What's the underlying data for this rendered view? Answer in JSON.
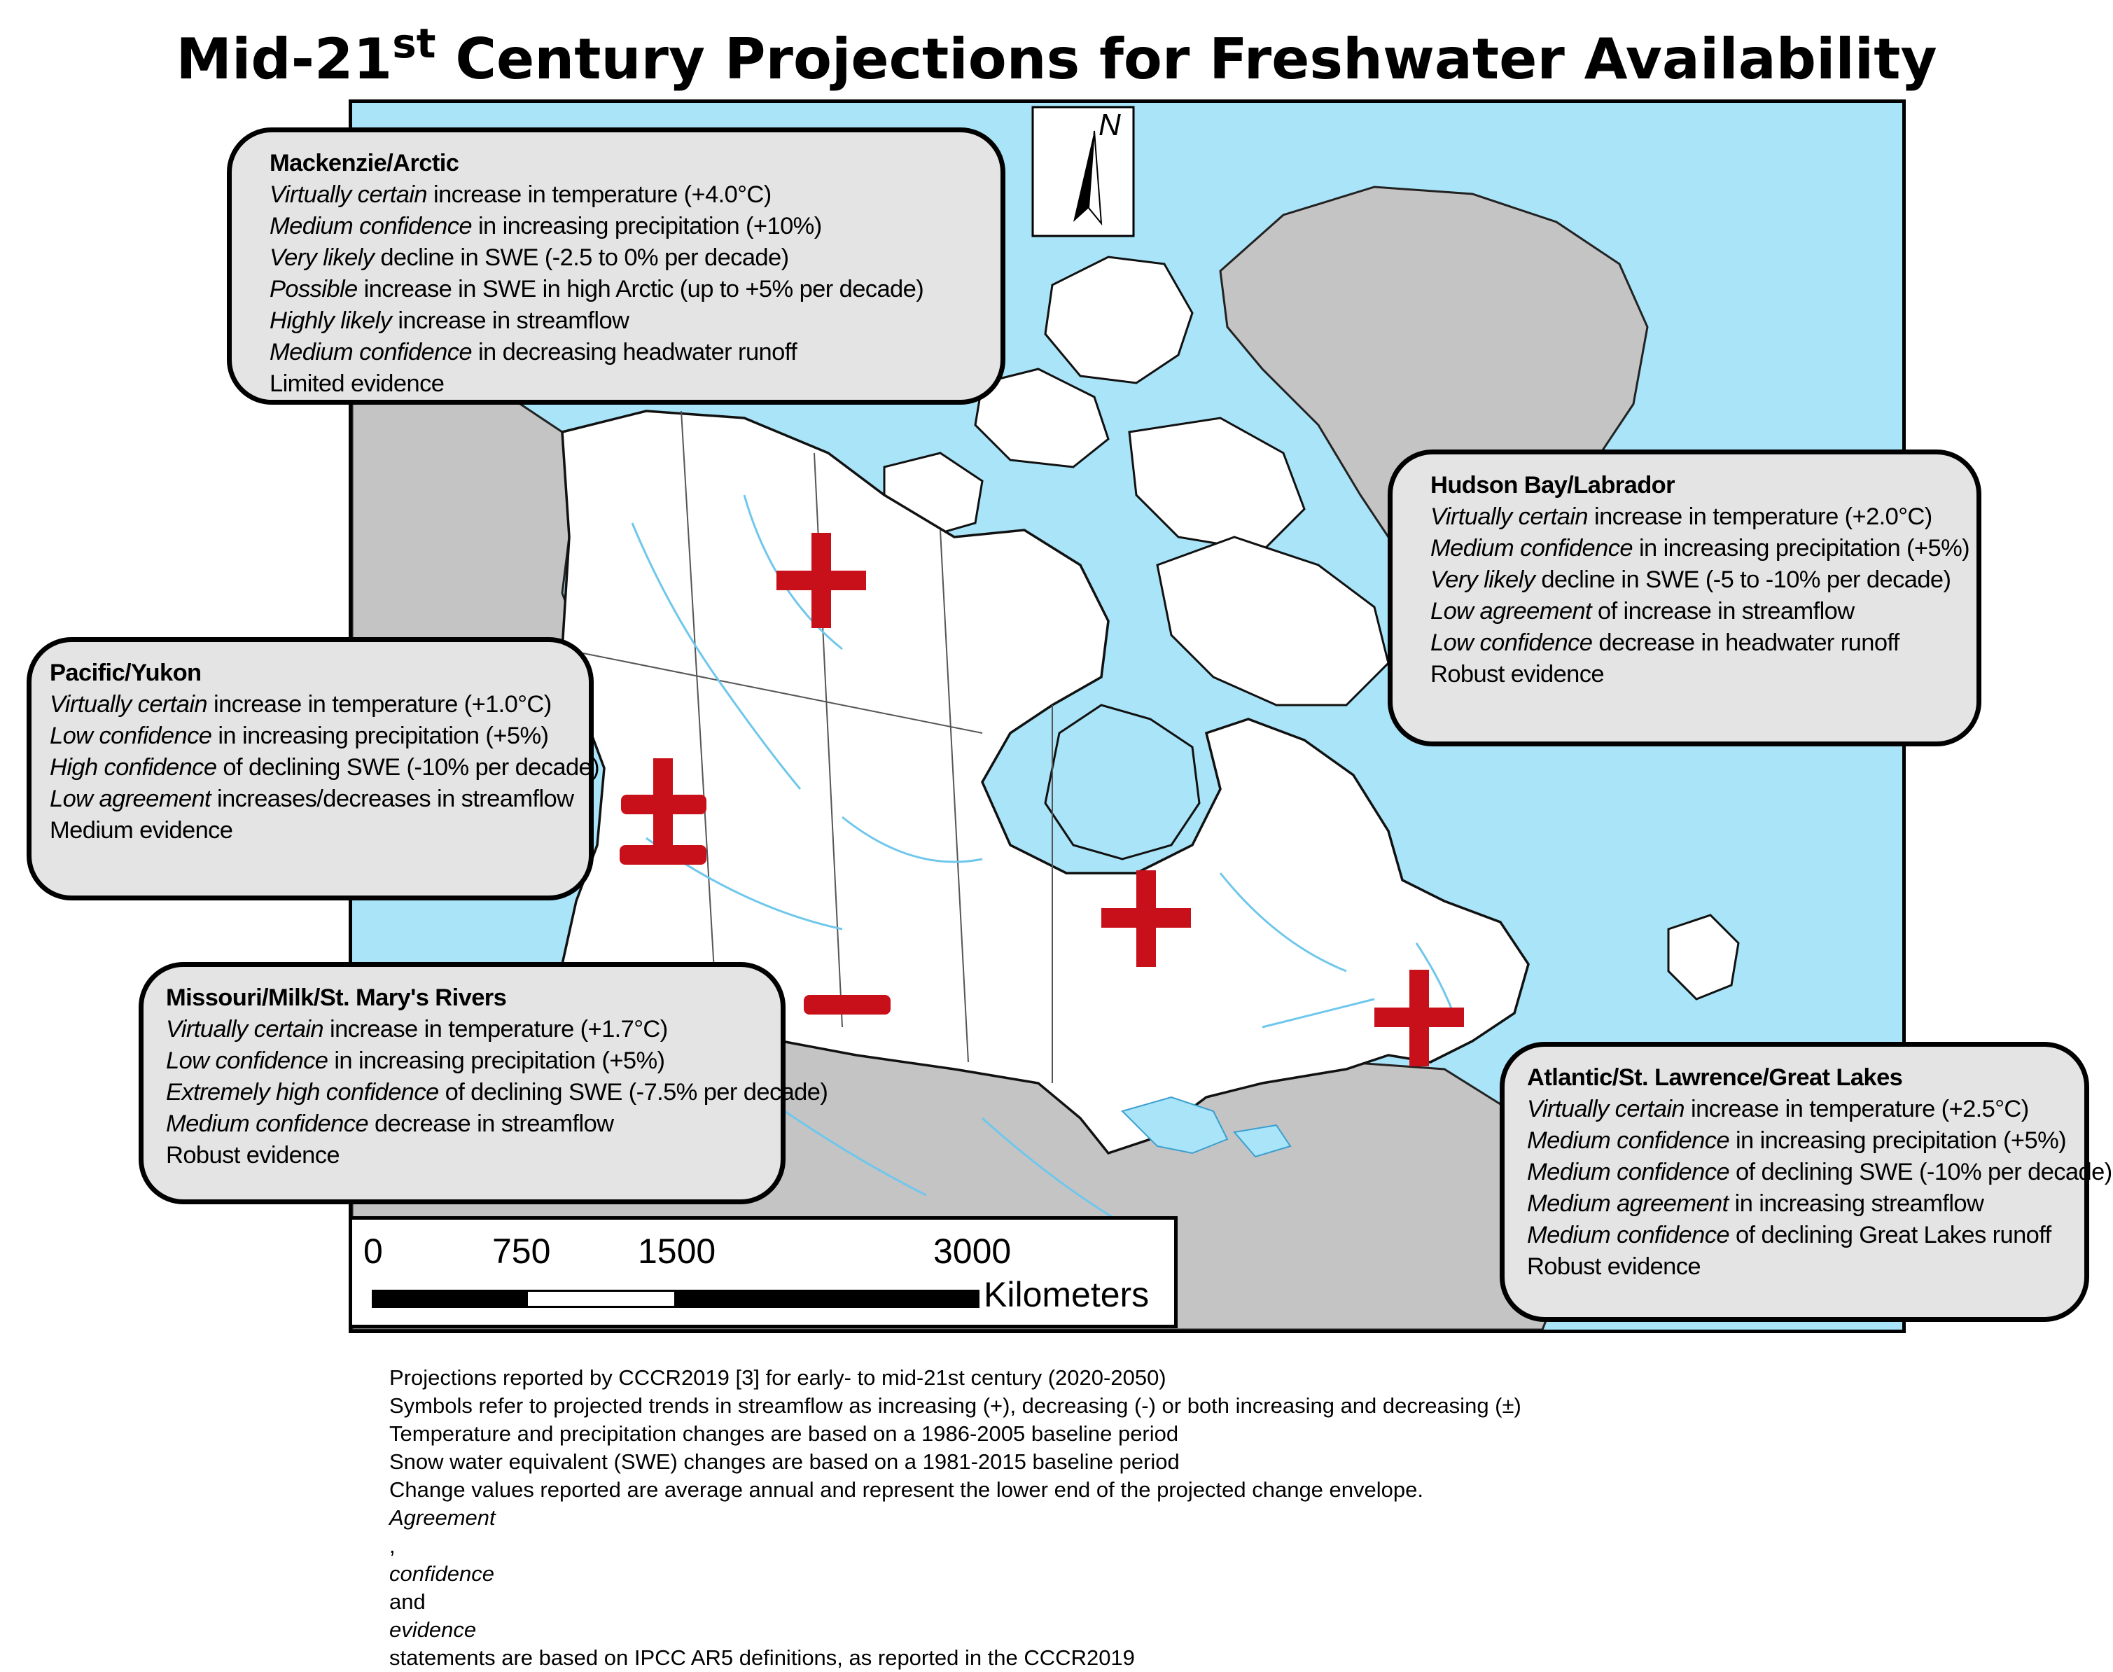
{
  "title": {
    "main_before": "Mid-21",
    "superscript": "st",
    "main_after": " Century Projections for Freshwater Availability"
  },
  "north_arrow": {
    "label": "N"
  },
  "regions": [
    {
      "name": "Mackenzie/Arctic",
      "symbol": "+",
      "lines": [
        {
          "qualifier": "Virtually certain",
          "text": " increase in temperature (+4.0°C)"
        },
        {
          "qualifier": "Medium confidence",
          "text": " in increasing precipitation (+10%)"
        },
        {
          "qualifier": "Very likely",
          "text": " decline in SWE (-2.5 to 0% per decade)"
        },
        {
          "qualifier": "Possible",
          "text": " increase in SWE in high Arctic (up to +5% per decade)"
        },
        {
          "qualifier": "Highly likely",
          "text": " increase in streamflow"
        },
        {
          "qualifier": "Medium confidence",
          "text": " in decreasing headwater runoff"
        },
        {
          "qualifier": "",
          "text": "Limited evidence"
        }
      ]
    },
    {
      "name": "Hudson Bay/Labrador",
      "symbol": "+",
      "lines": [
        {
          "qualifier": "Virtually certain",
          "text": " increase in temperature (+2.0°C)"
        },
        {
          "qualifier": "Medium confidence",
          "text": " in increasing precipitation (+5%)"
        },
        {
          "qualifier": "Very likely",
          "text": " decline in SWE (-5 to -10% per decade)"
        },
        {
          "qualifier": "Low agreement",
          "text": " of increase in streamflow"
        },
        {
          "qualifier": "Low confidence",
          "text": " decrease in headwater runoff"
        },
        {
          "qualifier": "",
          "text": "Robust evidence"
        }
      ]
    },
    {
      "name": "Pacific/Yukon",
      "symbol": "±",
      "lines": [
        {
          "qualifier": "Virtually certain",
          "text": " increase in temperature (+1.0°C)"
        },
        {
          "qualifier": "Low confidence",
          "text": " in increasing precipitation (+5%)"
        },
        {
          "qualifier": "High confidence",
          "text": " of declining SWE (-10% per decade)"
        },
        {
          "qualifier": "Low agreement",
          "text": " increases/decreases in streamflow"
        },
        {
          "qualifier": "",
          "text": "Medium evidence"
        }
      ]
    },
    {
      "name": "Missouri/Milk/St. Mary's Rivers",
      "symbol": "-",
      "lines": [
        {
          "qualifier": "Virtually certain",
          "text": " increase in temperature (+1.7°C)"
        },
        {
          "qualifier": "Low confidence",
          "text": " in increasing precipitation (+5%)"
        },
        {
          "qualifier": "Extremely high confidence",
          "text": " of declining SWE (-7.5% per decade)"
        },
        {
          "qualifier": "Medium confidence",
          "text": " decrease in streamflow"
        },
        {
          "qualifier": "",
          "text": "Robust evidence"
        }
      ]
    },
    {
      "name": "Atlantic/St. Lawrence/Great Lakes",
      "symbol": "+",
      "lines": [
        {
          "qualifier": "Virtually certain",
          "text": " increase in temperature (+2.5°C)"
        },
        {
          "qualifier": "Medium confidence",
          "text": " in increasing precipitation (+5%)"
        },
        {
          "qualifier": "Medium confidence",
          "text": " of declining SWE (-10% per decade)"
        },
        {
          "qualifier": "Medium agreement",
          "text": " in increasing streamflow"
        },
        {
          "qualifier": "Medium confidence",
          "text": " of declining Great Lakes runoff"
        },
        {
          "qualifier": "",
          "text": "Robust evidence"
        }
      ]
    }
  ],
  "center_symbol": "+",
  "scale": {
    "ticks": [
      "0",
      "750",
      "1500",
      "3000"
    ],
    "unit": "Kilometers"
  },
  "notes": [
    {
      "before": "Projections reported by CCCR2019 [3] for early- to mid-21st century (2020-2050)"
    },
    {
      "before": "Symbols refer to projected trends in streamflow as increasing (+), decreasing (-) or both increasing and decreasing (±)"
    },
    {
      "before": "Temperature and precipitation changes are based on a 1986-2005 baseline period"
    },
    {
      "before": "Snow water equivalent (SWE) changes are based on a 1981-2015 baseline period"
    },
    {
      "before": "Change values reported are average annual and represent the lower end of the projected change envelope."
    },
    {
      "i1": "Agreement",
      "t1": ", ",
      "i2": "confidence",
      "t2": " and ",
      "i3": "evidence",
      "t3": " statements are based on IPCC AR5 definitions, as reported in the CCCR2019"
    }
  ],
  "colors": {
    "water": "#a9e4f8",
    "land_canada": "#ffffff",
    "land_other": "#c4c4c4",
    "symbol": "#c8101a",
    "callout_fill": "#e4e4e4"
  }
}
